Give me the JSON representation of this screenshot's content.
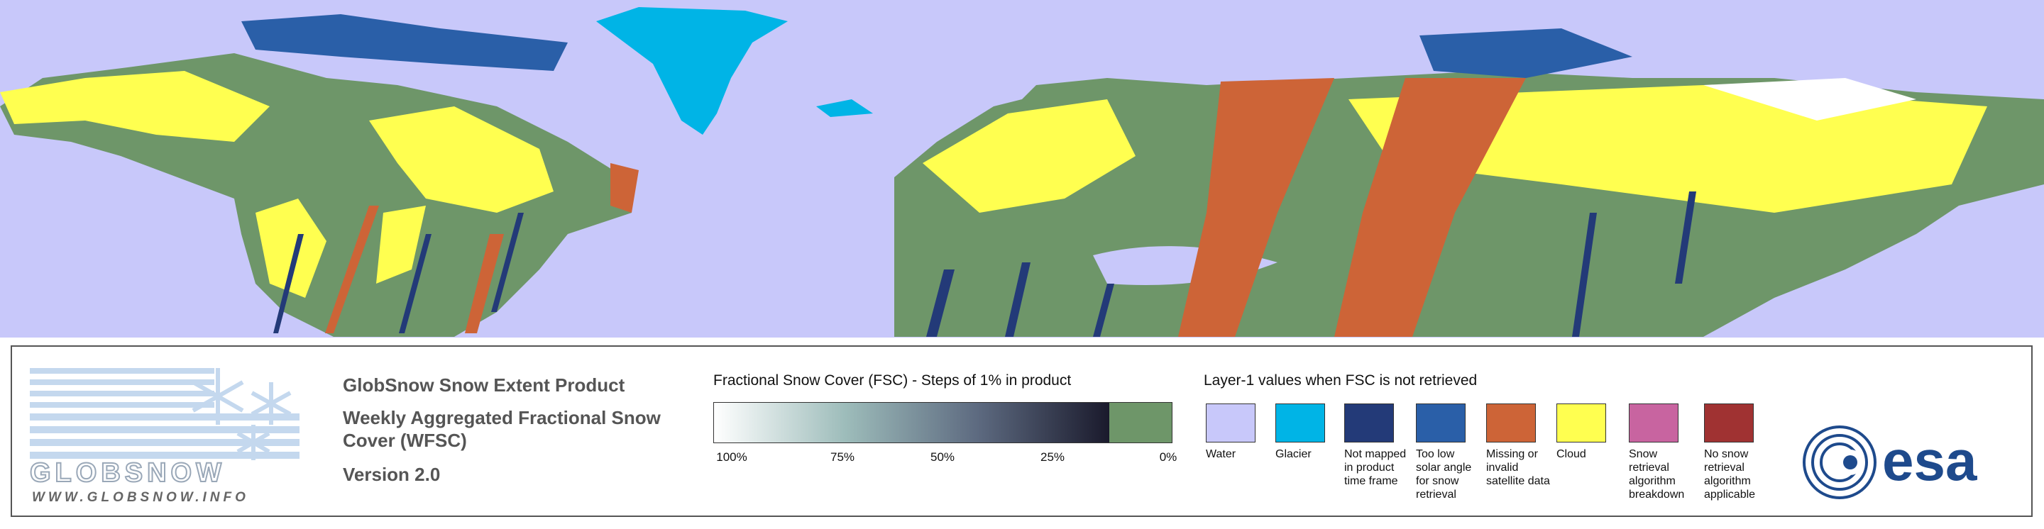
{
  "logo": {
    "name": "GLOBSNOW",
    "url": "WWW.GLOBSNOW.INFO",
    "agency": "esa"
  },
  "product": {
    "title": "GlobSnow Snow Extent Product",
    "subtitle": "Weekly Aggregated Fractional Snow Cover (WFSC)",
    "version": "Version 2.0"
  },
  "fsc_legend": {
    "title": "Fractional Snow Cover (FSC) - Steps of 1% in product",
    "labels": [
      "100%",
      "75%",
      "50%",
      "25%",
      "0%"
    ],
    "colors": [
      "#ffffff",
      "#9dbcba",
      "#5d6a80",
      "#1a1a2c"
    ],
    "snow_free_color": "#6e9669"
  },
  "layer1_legend": {
    "title": "Layer-1 values when FSC is not retrieved",
    "items": [
      {
        "label": "Water",
        "color": "#c8c8fa"
      },
      {
        "label": "Glacier",
        "color": "#00b4e6"
      },
      {
        "label": "Not mapped in product time frame",
        "color": "#233a78"
      },
      {
        "label": "Too low solar angle for snow retrieval",
        "color": "#2a5fa8"
      },
      {
        "label": "Missing or invalid satellite data",
        "color": "#cd6437"
      },
      {
        "label": "Cloud",
        "color": "#ffff50"
      },
      {
        "label": "Snow retrieval algorithm breakdown",
        "color": "#c864a0"
      },
      {
        "label": "No snow retrieval algorithm applicable",
        "color": "#a03232"
      }
    ]
  }
}
